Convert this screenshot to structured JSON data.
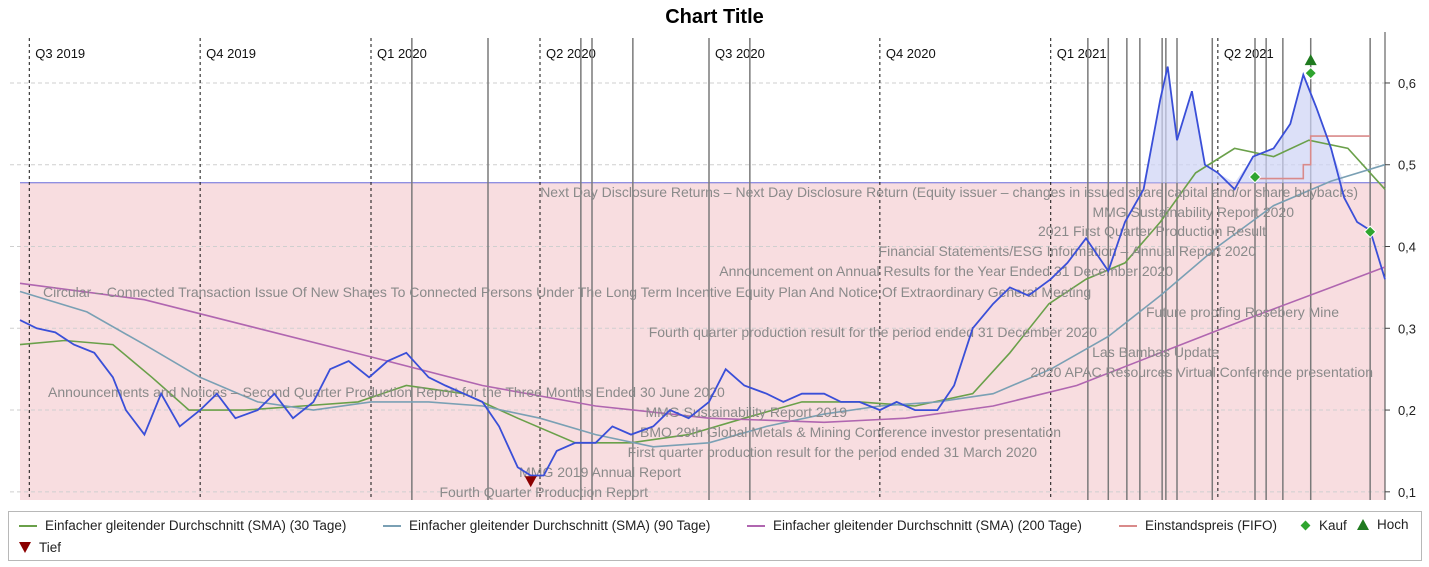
{
  "chart_data": {
    "type": "line",
    "title": "Chart Title",
    "x_range": [
      "2019-06-26",
      "2021-06-30"
    ],
    "ylim": [
      0.09,
      0.655
    ],
    "y_ticks": [
      0.1,
      0.2,
      0.3,
      0.4,
      0.5,
      0.6
    ],
    "y_tick_labels": [
      "0,1",
      "0,2",
      "0,3",
      "0,4",
      "0,5",
      "0,6"
    ],
    "grid": true,
    "legend_position": "bottom",
    "quarters": [
      {
        "label": "Q3 2019",
        "date": "2019-07-01"
      },
      {
        "label": "Q4 2019",
        "date": "2019-10-01"
      },
      {
        "label": "Q1 2020",
        "date": "2020-01-01"
      },
      {
        "label": "Q2 2020",
        "date": "2020-04-01"
      },
      {
        "label": "Q3 2020",
        "date": "2020-07-01"
      },
      {
        "label": "Q4 2020",
        "date": "2020-10-01"
      },
      {
        "label": "Q1 2021",
        "date": "2021-01-01"
      },
      {
        "label": "Q2 2021",
        "date": "2021-04-01"
      }
    ],
    "event_dates": [
      "2020-01-23",
      "2020-03-04",
      "2020-04-23",
      "2020-04-29",
      "2020-05-21",
      "2020-07-01",
      "2020-07-23",
      "2021-01-21",
      "2021-02-01",
      "2021-02-11",
      "2021-02-18",
      "2021-03-02",
      "2021-03-04",
      "2021-03-10",
      "2021-03-29",
      "2021-04-21",
      "2021-04-27",
      "2021-05-06",
      "2021-05-21",
      "2021-06-22"
    ],
    "price": {
      "color": "#3a4fd8",
      "points": [
        [
          "2019-06-26",
          0.31
        ],
        [
          "2019-07-05",
          0.3
        ],
        [
          "2019-07-15",
          0.295
        ],
        [
          "2019-07-25",
          0.28
        ],
        [
          "2019-08-05",
          0.27
        ],
        [
          "2019-08-15",
          0.24
        ],
        [
          "2019-08-22",
          0.2
        ],
        [
          "2019-09-01",
          0.17
        ],
        [
          "2019-09-10",
          0.22
        ],
        [
          "2019-09-20",
          0.18
        ],
        [
          "2019-10-01",
          0.2
        ],
        [
          "2019-10-10",
          0.22
        ],
        [
          "2019-10-20",
          0.19
        ],
        [
          "2019-11-01",
          0.2
        ],
        [
          "2019-11-10",
          0.22
        ],
        [
          "2019-11-20",
          0.19
        ],
        [
          "2019-12-01",
          0.21
        ],
        [
          "2019-12-10",
          0.25
        ],
        [
          "2019-12-20",
          0.26
        ],
        [
          "2019-12-31",
          0.24
        ],
        [
          "2020-01-10",
          0.26
        ],
        [
          "2020-01-20",
          0.27
        ],
        [
          "2020-02-01",
          0.24
        ],
        [
          "2020-02-10",
          0.23
        ],
        [
          "2020-02-20",
          0.22
        ],
        [
          "2020-03-01",
          0.21
        ],
        [
          "2020-03-10",
          0.18
        ],
        [
          "2020-03-20",
          0.13
        ],
        [
          "2020-03-27",
          0.12
        ],
        [
          "2020-04-03",
          0.12
        ],
        [
          "2020-04-10",
          0.15
        ],
        [
          "2020-04-20",
          0.16
        ],
        [
          "2020-05-01",
          0.16
        ],
        [
          "2020-05-10",
          0.18
        ],
        [
          "2020-05-20",
          0.17
        ],
        [
          "2020-06-01",
          0.18
        ],
        [
          "2020-06-10",
          0.2
        ],
        [
          "2020-06-20",
          0.19
        ],
        [
          "2020-07-01",
          0.21
        ],
        [
          "2020-07-10",
          0.25
        ],
        [
          "2020-07-20",
          0.23
        ],
        [
          "2020-08-01",
          0.22
        ],
        [
          "2020-08-10",
          0.21
        ],
        [
          "2020-08-20",
          0.22
        ],
        [
          "2020-09-01",
          0.22
        ],
        [
          "2020-09-10",
          0.21
        ],
        [
          "2020-09-20",
          0.21
        ],
        [
          "2020-10-01",
          0.2
        ],
        [
          "2020-10-10",
          0.21
        ],
        [
          "2020-10-20",
          0.2
        ],
        [
          "2020-11-01",
          0.2
        ],
        [
          "2020-11-10",
          0.23
        ],
        [
          "2020-11-20",
          0.3
        ],
        [
          "2020-12-01",
          0.33
        ],
        [
          "2020-12-10",
          0.35
        ],
        [
          "2020-12-20",
          0.34
        ],
        [
          "2021-01-01",
          0.36
        ],
        [
          "2021-01-10",
          0.38
        ],
        [
          "2021-01-20",
          0.41
        ],
        [
          "2021-02-01",
          0.37
        ],
        [
          "2021-02-10",
          0.43
        ],
        [
          "2021-02-20",
          0.47
        ],
        [
          "2021-03-01",
          0.58
        ],
        [
          "2021-03-05",
          0.62
        ],
        [
          "2021-03-10",
          0.53
        ],
        [
          "2021-03-18",
          0.59
        ],
        [
          "2021-03-25",
          0.5
        ],
        [
          "2021-04-01",
          0.49
        ],
        [
          "2021-04-10",
          0.47
        ],
        [
          "2021-04-20",
          0.51
        ],
        [
          "2021-05-01",
          0.52
        ],
        [
          "2021-05-10",
          0.55
        ],
        [
          "2021-05-17",
          0.61
        ],
        [
          "2021-05-24",
          0.57
        ],
        [
          "2021-06-01",
          0.52
        ],
        [
          "2021-06-08",
          0.46
        ],
        [
          "2021-06-15",
          0.43
        ],
        [
          "2021-06-22",
          0.42
        ],
        [
          "2021-06-30",
          0.36
        ]
      ]
    },
    "series": [
      {
        "name": "Einfacher gleitender Durchschnitt (SMA) (30 Tage)",
        "color": "#6aa04a",
        "points": [
          [
            "2019-06-26",
            0.28
          ],
          [
            "2019-07-20",
            0.285
          ],
          [
            "2019-08-15",
            0.28
          ],
          [
            "2019-09-05",
            0.24
          ],
          [
            "2019-09-25",
            0.2
          ],
          [
            "2019-10-25",
            0.2
          ],
          [
            "2019-11-25",
            0.205
          ],
          [
            "2019-12-25",
            0.21
          ],
          [
            "2020-01-20",
            0.23
          ],
          [
            "2020-02-20",
            0.22
          ],
          [
            "2020-03-20",
            0.19
          ],
          [
            "2020-04-20",
            0.16
          ],
          [
            "2020-05-20",
            0.16
          ],
          [
            "2020-06-20",
            0.17
          ],
          [
            "2020-07-20",
            0.19
          ],
          [
            "2020-08-20",
            0.21
          ],
          [
            "2020-09-20",
            0.21
          ],
          [
            "2020-10-20",
            0.205
          ],
          [
            "2020-11-20",
            0.22
          ],
          [
            "2020-12-10",
            0.27
          ],
          [
            "2020-12-31",
            0.33
          ],
          [
            "2021-01-20",
            0.36
          ],
          [
            "2021-02-10",
            0.38
          ],
          [
            "2021-03-01",
            0.43
          ],
          [
            "2021-03-20",
            0.49
          ],
          [
            "2021-04-10",
            0.52
          ],
          [
            "2021-05-01",
            0.51
          ],
          [
            "2021-05-20",
            0.53
          ],
          [
            "2021-06-10",
            0.52
          ],
          [
            "2021-06-30",
            0.47
          ]
        ]
      },
      {
        "name": "Einfacher gleitender Durchschnitt (SMA) (90 Tage)",
        "color": "#7aa0b4",
        "points": [
          [
            "2019-06-26",
            0.345
          ],
          [
            "2019-08-01",
            0.32
          ],
          [
            "2019-09-01",
            0.28
          ],
          [
            "2019-10-01",
            0.24
          ],
          [
            "2019-11-01",
            0.21
          ],
          [
            "2019-12-01",
            0.2
          ],
          [
            "2020-01-01",
            0.21
          ],
          [
            "2020-02-01",
            0.21
          ],
          [
            "2020-03-01",
            0.205
          ],
          [
            "2020-04-01",
            0.19
          ],
          [
            "2020-05-01",
            0.17
          ],
          [
            "2020-06-01",
            0.155
          ],
          [
            "2020-07-01",
            0.16
          ],
          [
            "2020-08-01",
            0.18
          ],
          [
            "2020-09-01",
            0.195
          ],
          [
            "2020-10-01",
            0.205
          ],
          [
            "2020-11-01",
            0.21
          ],
          [
            "2020-12-01",
            0.22
          ],
          [
            "2021-01-01",
            0.25
          ],
          [
            "2021-02-01",
            0.29
          ],
          [
            "2021-03-01",
            0.34
          ],
          [
            "2021-04-01",
            0.4
          ],
          [
            "2021-05-01",
            0.45
          ],
          [
            "2021-06-01",
            0.48
          ],
          [
            "2021-06-30",
            0.5
          ]
        ]
      },
      {
        "name": "Einfacher gleitender Durchschnitt (SMA) (200 Tage)",
        "color": "#b066b0",
        "points": [
          [
            "2019-06-26",
            0.355
          ],
          [
            "2019-09-01",
            0.335
          ],
          [
            "2019-11-01",
            0.3
          ],
          [
            "2020-01-01",
            0.265
          ],
          [
            "2020-03-01",
            0.23
          ],
          [
            "2020-05-01",
            0.205
          ],
          [
            "2020-07-01",
            0.19
          ],
          [
            "2020-09-01",
            0.185
          ],
          [
            "2020-10-15",
            0.19
          ],
          [
            "2020-12-01",
            0.205
          ],
          [
            "2021-01-15",
            0.23
          ],
          [
            "2021-03-01",
            0.27
          ],
          [
            "2021-04-15",
            0.31
          ],
          [
            "2021-06-01",
            0.35
          ],
          [
            "2021-06-30",
            0.375
          ]
        ]
      },
      {
        "name": "Einstandspreis (FIFO)",
        "color": "#d98a8a",
        "points": [
          [
            "2021-04-21",
            0.483
          ],
          [
            "2021-05-17",
            0.483
          ],
          [
            "2021-05-17",
            0.5
          ],
          [
            "2021-05-21",
            0.5
          ],
          [
            "2021-05-21",
            0.535
          ],
          [
            "2021-06-22",
            0.535
          ]
        ]
      }
    ],
    "buys": {
      "name": "Kauf",
      "color": "#2fa52f",
      "points": [
        [
          "2021-04-21",
          0.485
        ],
        [
          "2021-05-21",
          0.612
        ],
        [
          "2021-06-22",
          0.418
        ]
      ]
    },
    "high": {
      "name": "Hoch",
      "color": "#1f7a1f",
      "points": [
        [
          "2021-05-21",
          0.628
        ]
      ]
    },
    "low": {
      "name": "Tief",
      "color": "#8b0000",
      "points": [
        [
          "2020-03-27",
          0.113
        ]
      ]
    },
    "cost_band": {
      "from": "2019-06-26",
      "to": "2021-06-30",
      "level": 0.478,
      "color": "#f7d7da"
    },
    "annotations": [
      "Next Day Disclosure Returns – Next Day Disclosure Return (Equity issuer – changes in issued share capital and/or share buybacks)",
      "MMG Sustainability Report 2020",
      "2021 First Quarter Production Result",
      "Financial Statements/ESG Information – Annual Report 2020",
      "Announcement on Annual Results for the Year Ended 31 December 2020",
      "Circular – Connected Transaction Issue Of New Shares To Connected Persons Under The Long Term Incentive Equity Plan And Notice Of Extraordinary General Meeting",
      "Future proofing Rosebery Mine",
      "Fourth quarter production result for the period ended 31 December 2020",
      "Las Bambas Update",
      "2020 APAC Resources Virtual Conference presentation",
      "Announcements and Notices – Second Quarter Production Report for the Three Months Ended 30 June 2020",
      "MMG Sustainability Report 2019",
      "BMO 29th Global Metals & Mining Conference investor presentation",
      "First quarter production result for the period ended 31 March 2020",
      "MMG 2019 Annual Report",
      "Fourth Quarter Production Report"
    ]
  },
  "legend": {
    "sma30": "Einfacher gleitender Durchschnitt (SMA) (30 Tage)",
    "sma90": "Einfacher gleitender Durchschnitt (SMA) (90 Tage)",
    "sma200": "Einfacher gleitender Durchschnitt (SMA) (200 Tage)",
    "fifo": "Einstandspreis (FIFO)",
    "buy": "Kauf",
    "high": "Hoch",
    "low": "Tief"
  }
}
